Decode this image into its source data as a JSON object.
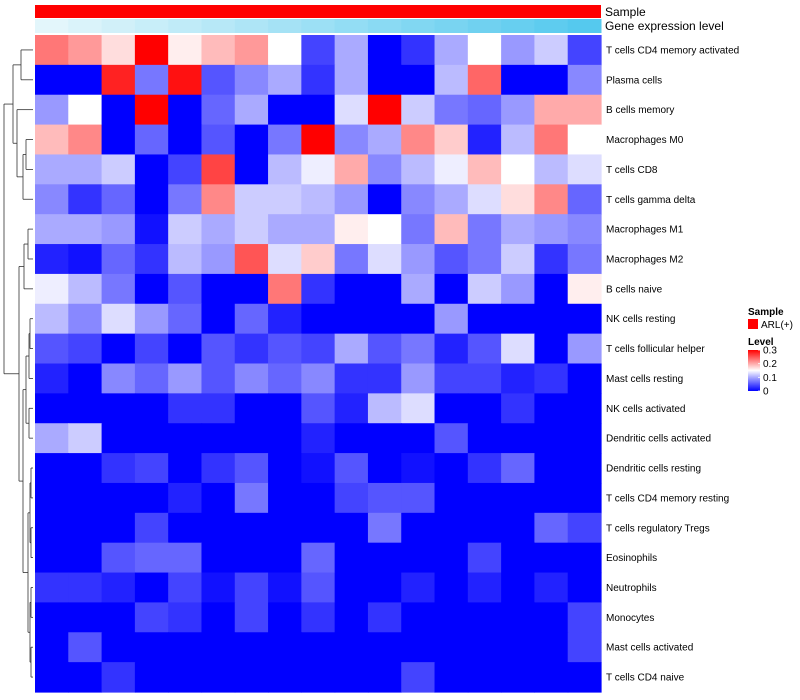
{
  "chart_data": {
    "type": "heatmap",
    "annotation_tracks": [
      {
        "name": "Sample",
        "color": "#ff0000"
      },
      {
        "name": "Gene expression level",
        "gradient": [
          "#e3f6fb",
          "#55c9ee"
        ]
      }
    ],
    "rows": [
      "T cells CD4 memory activated",
      "Plasma cells",
      "B cells memory",
      "Macrophages M0",
      "T cells CD8",
      "T cells gamma delta",
      "Macrophages M1",
      "Macrophages M2",
      "B cells naive",
      "NK cells resting",
      "T cells follicular helper",
      "Mast cells resting",
      "NK cells activated",
      "Dendritic cells activated",
      "Dendritic cells resting",
      "T cells CD4 memory resting",
      "T cells regulatory  Tregs",
      "Eosinophils",
      "Neutrophils",
      "Monocytes",
      "Mast cells activated",
      "T cells CD4 naive"
    ],
    "n_columns": 17,
    "values": [
      [
        0.23,
        0.21,
        0.17,
        0.3,
        0.16,
        0.19,
        0.21,
        0.15,
        0.04,
        0.1,
        0.0,
        0.03,
        0.1,
        0.15,
        0.09,
        0.12,
        0.04
      ],
      [
        0.0,
        0.0,
        0.28,
        0.07,
        0.29,
        0.05,
        0.08,
        0.1,
        0.03,
        0.1,
        0.0,
        0.0,
        0.11,
        0.24,
        0.0,
        0.0,
        0.08
      ],
      [
        0.09,
        0.15,
        0.0,
        0.3,
        0.0,
        0.06,
        0.1,
        0.0,
        0.0,
        0.13,
        0.3,
        0.12,
        0.07,
        0.06,
        0.09,
        0.2,
        0.2
      ],
      [
        0.19,
        0.22,
        0.0,
        0.06,
        0.0,
        0.05,
        0.0,
        0.07,
        0.3,
        0.08,
        0.1,
        0.22,
        0.18,
        0.02,
        0.11,
        0.23,
        0.15
      ],
      [
        0.1,
        0.1,
        0.12,
        0.0,
        0.04,
        0.26,
        0.0,
        0.11,
        0.14,
        0.2,
        0.08,
        0.11,
        0.14,
        0.19,
        0.15,
        0.11,
        0.13
      ],
      [
        0.08,
        0.03,
        0.06,
        0.0,
        0.07,
        0.22,
        0.12,
        0.12,
        0.11,
        0.09,
        0.0,
        0.08,
        0.1,
        0.13,
        0.17,
        0.22,
        0.06
      ],
      [
        0.1,
        0.1,
        0.09,
        0.01,
        0.12,
        0.1,
        0.12,
        0.1,
        0.1,
        0.16,
        0.15,
        0.07,
        0.19,
        0.07,
        0.1,
        0.09,
        0.08
      ],
      [
        0.02,
        0.01,
        0.06,
        0.03,
        0.11,
        0.09,
        0.25,
        0.13,
        0.18,
        0.07,
        0.13,
        0.09,
        0.05,
        0.07,
        0.12,
        0.03,
        0.07
      ],
      [
        0.14,
        0.11,
        0.07,
        0.0,
        0.05,
        0.0,
        0.0,
        0.23,
        0.03,
        0.0,
        0.0,
        0.1,
        0.0,
        0.12,
        0.09,
        0.0,
        0.16
      ],
      [
        0.11,
        0.08,
        0.13,
        0.09,
        0.06,
        0.0,
        0.06,
        0.02,
        0.0,
        0.0,
        0.0,
        0.0,
        0.09,
        0.0,
        0.0,
        0.0,
        0.0
      ],
      [
        0.05,
        0.04,
        0.0,
        0.04,
        0.0,
        0.05,
        0.03,
        0.05,
        0.04,
        0.1,
        0.05,
        0.07,
        0.02,
        0.05,
        0.13,
        0.0,
        0.09
      ],
      [
        0.02,
        0.0,
        0.08,
        0.06,
        0.09,
        0.05,
        0.08,
        0.06,
        0.08,
        0.03,
        0.03,
        0.09,
        0.04,
        0.04,
        0.02,
        0.03,
        0.0
      ],
      [
        0.0,
        0.0,
        0.0,
        0.0,
        0.03,
        0.03,
        0.0,
        0.0,
        0.05,
        0.02,
        0.11,
        0.13,
        0.0,
        0.0,
        0.03,
        0.0,
        0.0
      ],
      [
        0.1,
        0.12,
        0.0,
        0.0,
        0.0,
        0.0,
        0.0,
        0.0,
        0.02,
        0.0,
        0.0,
        0.0,
        0.05,
        0.0,
        0.0,
        0.0,
        0.0
      ],
      [
        0.0,
        0.0,
        0.03,
        0.04,
        0.0,
        0.03,
        0.05,
        0.0,
        0.01,
        0.05,
        0.0,
        0.01,
        0.0,
        0.03,
        0.06,
        0.0,
        0.0
      ],
      [
        0.0,
        0.0,
        0.0,
        0.0,
        0.02,
        0.0,
        0.07,
        0.0,
        0.0,
        0.04,
        0.05,
        0.05,
        0.0,
        0.0,
        0.0,
        0.0,
        0.0
      ],
      [
        0.0,
        0.0,
        0.0,
        0.04,
        0.0,
        0.0,
        0.0,
        0.0,
        0.0,
        0.0,
        0.07,
        0.0,
        0.0,
        0.0,
        0.0,
        0.06,
        0.04
      ],
      [
        0.0,
        0.0,
        0.05,
        0.06,
        0.06,
        0.0,
        0.0,
        0.0,
        0.06,
        0.0,
        0.0,
        0.0,
        0.0,
        0.04,
        0.0,
        0.0,
        0.0
      ],
      [
        0.03,
        0.03,
        0.02,
        0.0,
        0.04,
        0.01,
        0.04,
        0.01,
        0.05,
        0.0,
        0.0,
        0.02,
        0.0,
        0.02,
        0.0,
        0.02,
        0.0
      ],
      [
        0.0,
        0.0,
        0.0,
        0.04,
        0.03,
        0.0,
        0.04,
        0.0,
        0.03,
        0.0,
        0.03,
        0.0,
        0.0,
        0.0,
        0.0,
        0.0,
        0.04
      ],
      [
        0.0,
        0.05,
        0.0,
        0.0,
        0.0,
        0.0,
        0.0,
        0.0,
        0.0,
        0.0,
        0.0,
        0.0,
        0.0,
        0.0,
        0.0,
        0.0,
        0.04
      ],
      [
        0.0,
        0.0,
        0.03,
        0.0,
        0.0,
        0.0,
        0.0,
        0.0,
        0.0,
        0.0,
        0.0,
        0.04,
        0.0,
        0.0,
        0.0,
        0.0,
        0.0
      ]
    ],
    "color_scale": {
      "min": 0,
      "max": 0.3,
      "colors": [
        "#0000ff",
        "#ffffff",
        "#ff0000"
      ]
    },
    "legend": {
      "sample_title": "Sample",
      "sample_entry": "ARL(+)",
      "level_title": "Level",
      "level_ticks": [
        {
          "label": "0.3",
          "value": 0.3
        },
        {
          "label": "0.2",
          "value": 0.2
        },
        {
          "label": "0.1",
          "value": 0.1
        },
        {
          "label": "0",
          "value": 0
        }
      ],
      "placement": "right"
    },
    "row_dendrogram": true
  }
}
